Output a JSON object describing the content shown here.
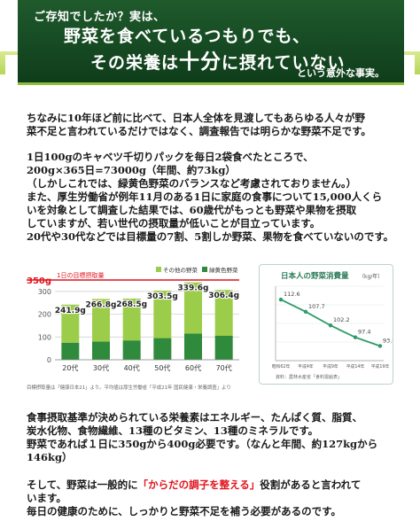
{
  "banner": {
    "line1": "ご存知でしたか？実は、",
    "line2": "野菜を食べているつもりでも、",
    "line3_pre": "その栄養は",
    "line3_big": "十分",
    "line3_post": "に摂れていない",
    "line4": "という意外な事実。"
  },
  "paragraph1": [
    "ちなみに10年ほど前に比べて、日本人全体を見渡してもあらゆる人々が野",
    "菜不足と言われているだけではなく、調査報告では明らかな野菜不足です。"
  ],
  "paragraph2": [
    "1日100gのキャベツ千切りパックを毎日2袋食べたところで、",
    "200g×365日=73000g（年間、約73kg）",
    "（しかしこれでは、緑黄色野菜のバランスなど考慮されておりません。）",
    "また、厚生労働省が例年11月のある1日に家庭の食事について15,000人くら",
    "いを対象として調査した結果では、60歳代がもっとも野菜や果物を摂取",
    "していますが、若い世代の摂取量が低いことが目立っています。",
    "20代や30代などでは目標量の7割、5割しか野菜、果物を食べていないのです。"
  ],
  "paragraph3": [
    "食事摂取基準が決められている栄養素はエネルギー、たんぱく質、脂質、",
    "炭水化物、食物繊維、13種のビタミン、13種のミネラルです。",
    "野菜であれば１日に350gから400g必要です。（なんと年間、約127kgから",
    "146kg）"
  ],
  "paragraph4": {
    "line1_pre": "そして、野菜は一般的に",
    "line1_red": "「からだの調子を整える」",
    "line1_post": "役割があると言われて",
    "line2": "います。",
    "line3": "毎日の健康のために、しっかりと野菜不足を補う必要があるのです。"
  },
  "colors": {
    "banner_bg": "#1a4f27",
    "accent_green": "#8fbf3a",
    "other_veg": "#9ccd4a",
    "green_yellow_veg": "#2f8a3c",
    "target_line": "#e0141e",
    "line_chart": "#2e9a6a",
    "emphasis_red": "#e0141e"
  },
  "chart_data": [
    {
      "type": "bar",
      "stacked": true,
      "target_label": "1日の目標摂取量",
      "target_value": 350,
      "target_value_label": "350g",
      "categories": [
        "20代",
        "30代",
        "40代",
        "50代",
        "60代",
        "70代"
      ],
      "series": [
        {
          "name": "緑黄色野菜",
          "values": [
            75,
            80,
            85,
            95,
            115,
            105
          ]
        },
        {
          "name": "その他の野菜",
          "values": [
            166.9,
            186.8,
            183.5,
            208.5,
            224.6,
            201.4
          ]
        }
      ],
      "totals": [
        241.9,
        266.8,
        268.5,
        303.5,
        339.6,
        306.4
      ],
      "total_labels": [
        "241.9g",
        "266.8g",
        "268.5g",
        "303.5g",
        "339.6g",
        "306.4g"
      ],
      "yticks": [
        0,
        100,
        200,
        300
      ],
      "ylim": [
        0,
        350
      ],
      "grid": true,
      "legend_position": "top-right",
      "source": "目標摂取量は「健康日本21」より。平均値は厚生労働省「平成21年 国民健康・栄養調査」より"
    },
    {
      "type": "line",
      "title": "日本人の野菜消費量",
      "unit": "（kg/年）",
      "x": [
        "昭和62年",
        "平成4年",
        "平成9年",
        "平成14年",
        "平成19年"
      ],
      "y": [
        112.6,
        107.7,
        102.2,
        97.4,
        93.9
      ],
      "y_labels": [
        "112.6",
        "107.7",
        "102.2",
        "97.4",
        "93.9"
      ],
      "ylim": [
        88,
        118
      ],
      "grid": true,
      "source": "資料：農林水産省「食料需給表」"
    }
  ]
}
